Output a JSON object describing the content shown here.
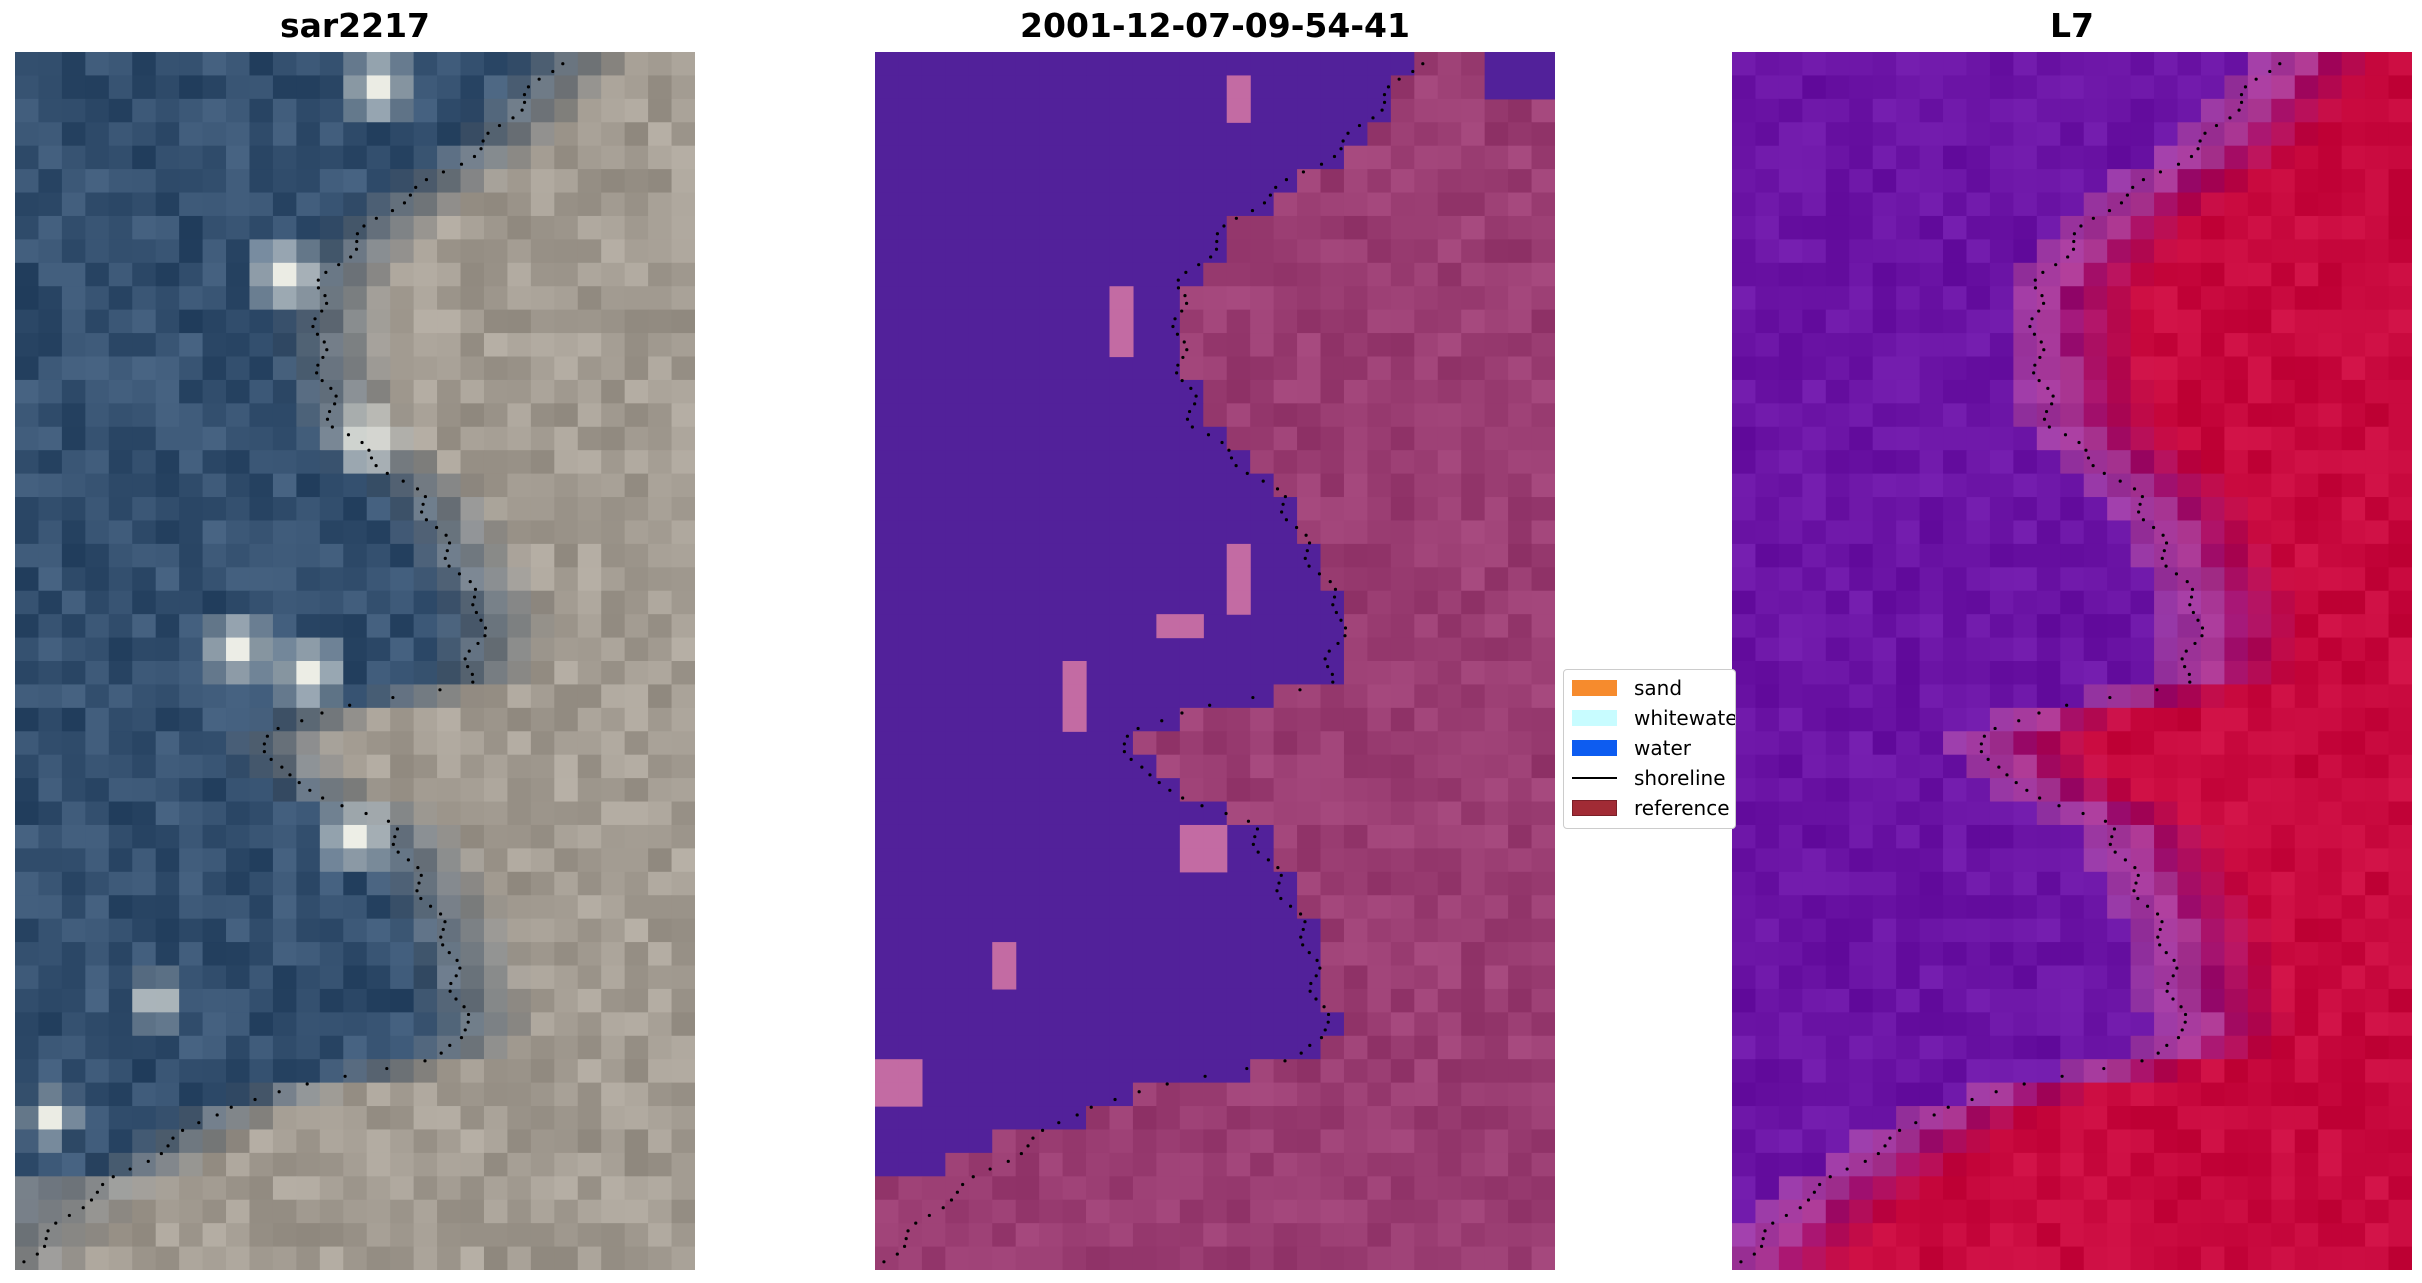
{
  "panels": [
    {
      "id": "rgb",
      "title": "sar2217"
    },
    {
      "id": "classified",
      "title": "2001-12-07-09-54-41"
    },
    {
      "id": "index",
      "title": "L7"
    }
  ],
  "legend": {
    "entries": [
      {
        "label": "sand",
        "kind": "patch",
        "color": "#f68b2d"
      },
      {
        "label": "whitewater",
        "kind": "patch",
        "color": "#c8fcff"
      },
      {
        "label": "water",
        "kind": "patch",
        "color": "#0d5cf0"
      },
      {
        "label": "shoreline",
        "kind": "line",
        "color": "#000000"
      },
      {
        "label": "reference",
        "kind": "patch",
        "color": "#a12b35"
      }
    ]
  },
  "colors": {
    "water_class": "#52219a",
    "land_class": "#9a3d72",
    "index_water": "#6b14a5",
    "index_land": "#c8093e",
    "rgb_water": "#34506f",
    "rgb_land": "#a39c92",
    "shoreline": "#000000"
  }
}
